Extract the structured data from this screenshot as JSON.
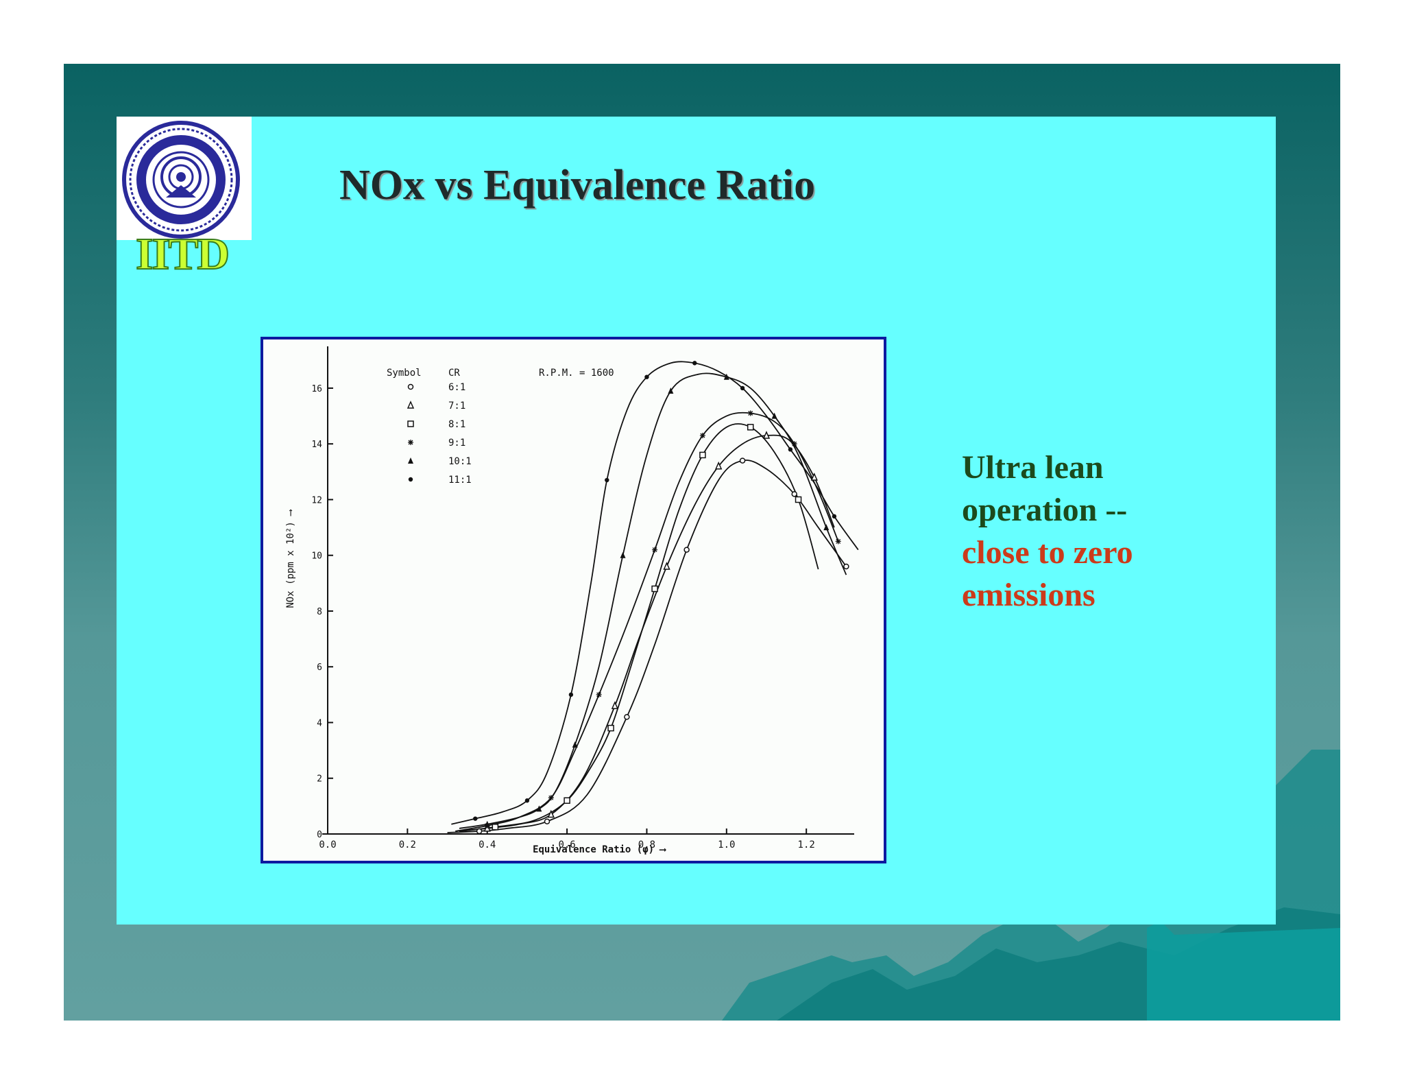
{
  "slide": {
    "title": "NOx vs Equivalence Ratio",
    "logo_text": "IITD",
    "side_text": {
      "line1": "Ultra lean",
      "line2": "operation --",
      "line3": "close to zero",
      "line4": "emissions"
    },
    "colors": {
      "panel": "#66ffff",
      "frame": "#0d1aa0",
      "title": "#1f2a2a",
      "text_dark": "#1c4a1c",
      "text_red": "#cc3a1a",
      "logo_text": "#ccff33"
    }
  },
  "chart_data": {
    "type": "line",
    "xlabel": "Equivalence Ratio (φ) ⟶",
    "ylabel": "NOx (ppm x 10²) ⟶",
    "xlim": [
      0.0,
      1.32
    ],
    "ylim": [
      0,
      17.5
    ],
    "xticks": [
      "0.0",
      "0.2",
      "0.4",
      "0.6",
      "0.8",
      "1.0",
      "1.2"
    ],
    "yticks": [
      "0",
      "2",
      "4",
      "6",
      "8",
      "10",
      "12",
      "14",
      "16"
    ],
    "annotation": "R.P.M. = 1600",
    "legend_headers": [
      "Symbol",
      "CR"
    ],
    "grid": false,
    "series": [
      {
        "name": "6:1",
        "marker": "circle",
        "x": [
          0.3,
          0.38,
          0.45,
          0.55,
          0.65,
          0.75,
          0.82,
          0.9,
          0.98,
          1.04,
          1.1,
          1.17,
          1.23,
          1.3
        ],
        "y": [
          0.05,
          0.1,
          0.2,
          0.45,
          1.4,
          4.2,
          6.8,
          10.2,
          12.7,
          13.4,
          13.1,
          12.2,
          11.0,
          9.6
        ]
      },
      {
        "name": "7:1",
        "marker": "triangle-open",
        "x": [
          0.33,
          0.4,
          0.48,
          0.56,
          0.64,
          0.72,
          0.78,
          0.85,
          0.92,
          0.98,
          1.04,
          1.1,
          1.16,
          1.22,
          1.27
        ],
        "y": [
          0.1,
          0.2,
          0.35,
          0.7,
          2.0,
          4.6,
          7.0,
          9.6,
          11.8,
          13.2,
          14.0,
          14.3,
          14.1,
          12.8,
          11.0
        ]
      },
      {
        "name": "8:1",
        "marker": "square-open",
        "x": [
          0.33,
          0.42,
          0.52,
          0.6,
          0.66,
          0.71,
          0.76,
          0.82,
          0.88,
          0.94,
          1.0,
          1.06,
          1.12,
          1.18,
          1.23
        ],
        "y": [
          0.1,
          0.25,
          0.5,
          1.2,
          2.4,
          3.8,
          6.0,
          8.8,
          11.6,
          13.6,
          14.6,
          14.6,
          13.7,
          12.0,
          9.5
        ]
      },
      {
        "name": "9:1",
        "marker": "star",
        "x": [
          0.32,
          0.4,
          0.48,
          0.56,
          0.62,
          0.68,
          0.75,
          0.82,
          0.88,
          0.94,
          1.0,
          1.06,
          1.12,
          1.17,
          1.23,
          1.28
        ],
        "y": [
          0.1,
          0.3,
          0.6,
          1.3,
          3.0,
          5.0,
          7.5,
          10.2,
          12.6,
          14.3,
          15.0,
          15.1,
          14.8,
          14.0,
          12.3,
          10.5
        ]
      },
      {
        "name": "10:1",
        "marker": "triangle-filled",
        "x": [
          0.33,
          0.4,
          0.48,
          0.53,
          0.57,
          0.62,
          0.68,
          0.74,
          0.8,
          0.86,
          0.93,
          1.0,
          1.06,
          1.12,
          1.18,
          1.25,
          1.3
        ],
        "y": [
          0.2,
          0.35,
          0.6,
          0.9,
          1.5,
          3.2,
          6.0,
          10.0,
          13.6,
          15.9,
          16.5,
          16.4,
          16.0,
          15.0,
          13.6,
          11.0,
          9.3
        ]
      },
      {
        "name": "11:1",
        "marker": "circle-filled",
        "x": [
          0.31,
          0.37,
          0.44,
          0.5,
          0.55,
          0.61,
          0.66,
          0.7,
          0.75,
          0.8,
          0.86,
          0.92,
          0.98,
          1.04,
          1.1,
          1.16,
          1.22,
          1.27,
          1.33
        ],
        "y": [
          0.35,
          0.55,
          0.8,
          1.2,
          2.2,
          5.0,
          9.0,
          12.7,
          15.2,
          16.4,
          16.9,
          16.9,
          16.6,
          16.0,
          15.0,
          13.8,
          12.6,
          11.4,
          10.2
        ]
      }
    ]
  }
}
